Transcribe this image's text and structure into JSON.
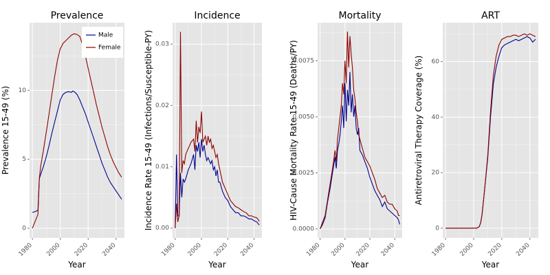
{
  "chart_data": [
    {
      "type": "line",
      "title": "Prevalence",
      "xlabel": "Year",
      "ylabel": "Prevalence 15-49 (%)",
      "xlim": [
        1978,
        2046
      ],
      "ylim": [
        -0.7,
        14.9
      ],
      "xticks": [
        1980,
        2000,
        2020,
        2040
      ],
      "yticks": [
        0,
        5,
        10
      ],
      "ytick_labels": [
        "0",
        "5",
        "10"
      ],
      "grid": true,
      "legend": {
        "position": "top-right",
        "entries": [
          "Male",
          "Female"
        ]
      },
      "series": [
        {
          "name": "Male",
          "color": "#00008b",
          "x": [
            1980,
            1982,
            1984,
            1985,
            1986,
            1988,
            1990,
            1992,
            1994,
            1996,
            1998,
            2000,
            2002,
            2004,
            2006,
            2008,
            2009,
            2010,
            2012,
            2014,
            2016,
            2018,
            2020,
            2022,
            2024,
            2026,
            2028,
            2030,
            2032,
            2034,
            2036,
            2038,
            2040,
            2042,
            2044
          ],
          "y": [
            1.15,
            1.2,
            1.3,
            3.6,
            3.9,
            4.5,
            5.2,
            6.0,
            6.9,
            7.7,
            8.5,
            9.3,
            9.7,
            9.85,
            9.9,
            9.85,
            9.95,
            9.9,
            9.7,
            9.3,
            8.8,
            8.3,
            7.7,
            7.1,
            6.5,
            5.9,
            5.3,
            4.7,
            4.2,
            3.7,
            3.3,
            3.0,
            2.7,
            2.4,
            2.1
          ]
        },
        {
          "name": "Female",
          "color": "#8b0000",
          "x": [
            1980,
            1982,
            1984,
            1985,
            1986,
            1988,
            1990,
            1992,
            1994,
            1996,
            1998,
            2000,
            2002,
            2004,
            2006,
            2008,
            2010,
            2012,
            2014,
            2016,
            2018,
            2020,
            2022,
            2024,
            2026,
            2028,
            2030,
            2032,
            2034,
            2036,
            2038,
            2040,
            2042,
            2044
          ],
          "y": [
            0.0,
            0.5,
            1.0,
            3.6,
            4.5,
            5.7,
            7.0,
            8.3,
            9.7,
            11.0,
            12.2,
            13.0,
            13.4,
            13.6,
            13.8,
            14.0,
            14.1,
            14.05,
            13.9,
            13.3,
            12.5,
            11.6,
            10.7,
            9.8,
            8.9,
            8.1,
            7.3,
            6.6,
            5.9,
            5.3,
            4.8,
            4.4,
            4.0,
            3.7
          ]
        }
      ]
    },
    {
      "type": "line",
      "title": "Incidence",
      "xlabel": "Year",
      "ylabel": "Incidence Rate 15-49 (Infections/Susceptible-PY)",
      "xlim": [
        1978,
        2046
      ],
      "ylim": [
        -0.0016,
        0.0335
      ],
      "xticks": [
        1980,
        2000,
        2020,
        2040
      ],
      "yticks": [
        0,
        0.01,
        0.02,
        0.03
      ],
      "ytick_labels": [
        "0.00",
        "0.01",
        "0.02",
        "0.03"
      ],
      "grid": true,
      "series": [
        {
          "name": "Male",
          "color": "#00008b",
          "x": [
            1980,
            1981,
            1982,
            1983,
            1984,
            1985,
            1986,
            1987,
            1988,
            1990,
            1992,
            1994,
            1995,
            1996,
            1997,
            1998,
            1999,
            2000,
            2001,
            2002,
            2003,
            2004,
            2005,
            2006,
            2007,
            2008,
            2009,
            2010,
            2011,
            2012,
            2013,
            2014,
            2016,
            2018,
            2020,
            2022,
            2024,
            2026,
            2028,
            2030,
            2032,
            2034,
            2036,
            2038,
            2040,
            2042,
            2044
          ],
          "y": [
            0.0,
            0.012,
            0.002,
            0.002,
            0.009,
            0.005,
            0.008,
            0.0075,
            0.008,
            0.0095,
            0.0105,
            0.012,
            0.0095,
            0.0135,
            0.0125,
            0.014,
            0.0115,
            0.0145,
            0.0125,
            0.0135,
            0.012,
            0.011,
            0.0115,
            0.011,
            0.0105,
            0.011,
            0.0095,
            0.01,
            0.0085,
            0.0095,
            0.0075,
            0.0075,
            0.006,
            0.005,
            0.0045,
            0.0035,
            0.003,
            0.0025,
            0.0025,
            0.002,
            0.002,
            0.0018,
            0.0015,
            0.0015,
            0.0012,
            0.001,
            0.0005
          ]
        },
        {
          "name": "Female",
          "color": "#8b0000",
          "x": [
            1980,
            1981,
            1982,
            1983,
            1984,
            1985,
            1986,
            1987,
            1988,
            1990,
            1992,
            1994,
            1995,
            1996,
            1997,
            1998,
            1999,
            2000,
            2001,
            2002,
            2003,
            2004,
            2005,
            2006,
            2007,
            2008,
            2009,
            2010,
            2011,
            2012,
            2013,
            2014,
            2016,
            2018,
            2020,
            2022,
            2024,
            2026,
            2028,
            2030,
            2032,
            2034,
            2036,
            2038,
            2040,
            2042,
            2044
          ],
          "y": [
            0.0,
            0.004,
            0.001,
            0.002,
            0.032,
            0.009,
            0.011,
            0.0105,
            0.012,
            0.013,
            0.014,
            0.0145,
            0.0125,
            0.0175,
            0.014,
            0.0165,
            0.0155,
            0.019,
            0.014,
            0.0145,
            0.015,
            0.0135,
            0.015,
            0.014,
            0.0145,
            0.013,
            0.0135,
            0.0125,
            0.0115,
            0.012,
            0.0105,
            0.0095,
            0.0075,
            0.0065,
            0.0055,
            0.0045,
            0.004,
            0.0035,
            0.0033,
            0.003,
            0.0027,
            0.0025,
            0.002,
            0.002,
            0.0018,
            0.0017,
            0.0011
          ]
        }
      ]
    },
    {
      "type": "line",
      "title": "Mortality",
      "xlabel": "Year",
      "ylabel": "HIV-Cause Mortality Rate 15-49 (Deaths/PY)",
      "xlim": [
        1978,
        2046
      ],
      "ylim": [
        -0.0004,
        0.0092
      ],
      "xticks": [
        1980,
        2000,
        2020,
        2040
      ],
      "yticks": [
        0,
        0.0025,
        0.005,
        0.0075
      ],
      "ytick_labels": [
        "0.0000",
        "0.0025",
        "0.0050",
        "0.0075"
      ],
      "grid": true,
      "series": [
        {
          "name": "Male",
          "color": "#00008b",
          "x": [
            1980,
            1982,
            1984,
            1986,
            1988,
            1990,
            1992,
            1993,
            1994,
            1995,
            1996,
            1997,
            1998,
            1999,
            2000,
            2001,
            2002,
            2003,
            2004,
            2005,
            2006,
            2007,
            2008,
            2009,
            2010,
            2011,
            2012,
            2014,
            2016,
            2018,
            2020,
            2022,
            2024,
            2026,
            2028,
            2030,
            2032,
            2034,
            2036,
            2038,
            2040,
            2042,
            2043,
            2044
          ],
          "y": [
            0.0,
            0.0002,
            0.0005,
            0.0012,
            0.0018,
            0.0025,
            0.0032,
            0.0027,
            0.0035,
            0.0038,
            0.0042,
            0.0048,
            0.0055,
            0.0045,
            0.0065,
            0.0048,
            0.0062,
            0.0055,
            0.007,
            0.0052,
            0.006,
            0.005,
            0.0055,
            0.0045,
            0.0042,
            0.0045,
            0.0035,
            0.0033,
            0.003,
            0.0027,
            0.0023,
            0.002,
            0.0017,
            0.0015,
            0.0013,
            0.001,
            0.0012,
            0.0009,
            0.0008,
            0.0007,
            0.0006,
            0.0005,
            0.0004,
            0.0002
          ]
        },
        {
          "name": "Female",
          "color": "#8b0000",
          "x": [
            1980,
            1982,
            1984,
            1986,
            1988,
            1990,
            1992,
            1993,
            1994,
            1995,
            1996,
            1997,
            1998,
            1999,
            2000,
            2001,
            2002,
            2003,
            2004,
            2005,
            2006,
            2007,
            2008,
            2009,
            2010,
            2011,
            2012,
            2014,
            2016,
            2018,
            2020,
            2022,
            2024,
            2026,
            2028,
            2030,
            2032,
            2034,
            2036,
            2038,
            2040,
            2042,
            2043,
            2044
          ],
          "y": [
            0.0,
            0.0003,
            0.0006,
            0.0013,
            0.002,
            0.0027,
            0.0035,
            0.003,
            0.004,
            0.0045,
            0.005,
            0.0055,
            0.0065,
            0.006,
            0.0075,
            0.0065,
            0.0088,
            0.0072,
            0.0086,
            0.0078,
            0.0072,
            0.0062,
            0.0058,
            0.0052,
            0.0048,
            0.0042,
            0.004,
            0.0036,
            0.0032,
            0.003,
            0.0028,
            0.0025,
            0.0022,
            0.0018,
            0.0016,
            0.0014,
            0.0015,
            0.0012,
            0.0011,
            0.0011,
            0.0009,
            0.0008,
            0.0006,
            0.0006
          ]
        }
      ]
    },
    {
      "type": "line",
      "title": "ART",
      "xlabel": "Year",
      "ylabel": "Antiretroviral Therapy Coverage (%)",
      "xlim": [
        1978,
        2046
      ],
      "ylim": [
        -3.5,
        74
      ],
      "xticks": [
        1980,
        2000,
        2020,
        2040
      ],
      "yticks": [
        0,
        20,
        40,
        60
      ],
      "ytick_labels": [
        "0",
        "20",
        "40",
        "60"
      ],
      "grid": true,
      "series": [
        {
          "name": "Male",
          "color": "#00008b",
          "x": [
            1980,
            1985,
            1990,
            1995,
            2000,
            2002,
            2004,
            2005,
            2006,
            2007,
            2008,
            2010,
            2012,
            2014,
            2016,
            2018,
            2020,
            2022,
            2024,
            2026,
            2028,
            2030,
            2032,
            2034,
            2036,
            2038,
            2040,
            2042,
            2044
          ],
          "y": [
            0,
            0,
            0,
            0,
            0,
            0,
            0.5,
            2,
            5,
            10,
            15,
            25,
            40,
            52,
            58,
            62,
            65,
            66,
            66.5,
            67,
            67.5,
            68,
            67.5,
            68,
            68.5,
            69,
            68.5,
            67,
            68
          ]
        },
        {
          "name": "Female",
          "color": "#8b0000",
          "x": [
            1980,
            1985,
            1990,
            1995,
            2000,
            2002,
            2004,
            2005,
            2006,
            2007,
            2008,
            2010,
            2012,
            2014,
            2016,
            2018,
            2020,
            2022,
            2024,
            2026,
            2028,
            2030,
            2032,
            2034,
            2036,
            2038,
            2040,
            2042,
            2044
          ],
          "y": [
            0,
            0,
            0,
            0,
            0,
            0,
            0.5,
            2,
            5,
            10,
            15,
            26,
            42,
            55,
            62,
            66,
            68,
            68.5,
            69,
            69,
            69.5,
            69.5,
            69,
            69.5,
            70,
            69.5,
            70,
            69.5,
            69
          ]
        }
      ]
    }
  ]
}
